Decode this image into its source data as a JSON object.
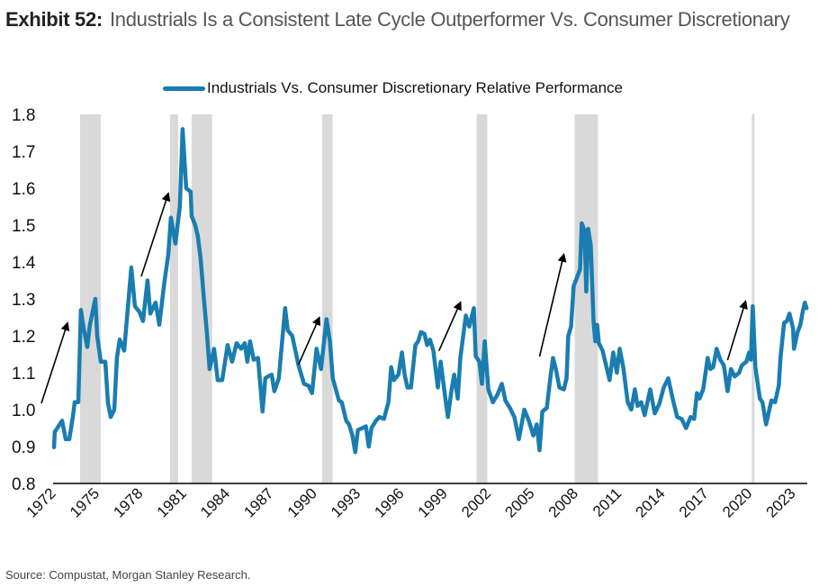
{
  "title": {
    "exhibit": "Exhibit 52:",
    "text": "Industrials Is a Consistent Late Cycle Outperformer Vs. Consumer Discretionary"
  },
  "source": "Source: Compustat, Morgan Stanley Research.",
  "colors": {
    "line": "#1A7DB0",
    "recession": "#D9D9D9",
    "arrow": "#000000",
    "axis": "#000000"
  },
  "chart_data": {
    "type": "line",
    "title": "Industrials Is a Consistent Late Cycle Outperformer Vs. Consumer Discretionary",
    "xlabel": "",
    "ylabel": "",
    "legend": {
      "position": "top-center",
      "entries": [
        "Industrials Vs. Consumer Discretionary Relative Performance"
      ]
    },
    "xlim": [
      1972,
      2024.1
    ],
    "ylim": [
      0.8,
      1.8
    ],
    "grid": false,
    "x_ticks": [
      1972,
      1975,
      1978,
      1981,
      1984,
      1987,
      1990,
      1993,
      1996,
      1999,
      2002,
      2005,
      2008,
      2011,
      2014,
      2017,
      2020,
      2023
    ],
    "y_ticks": [
      0.8,
      0.9,
      1.0,
      1.1,
      1.2,
      1.3,
      1.4,
      1.5,
      1.6,
      1.7,
      1.8
    ],
    "y_tick_labels": [
      "0.8",
      "0.9",
      "1.0",
      "1.1",
      "1.2",
      "1.3",
      "1.4",
      "1.5",
      "1.6",
      "1.7",
      "1.8"
    ],
    "recessions": [
      [
        1973.86,
        1975.29
      ],
      [
        1980.06,
        1980.62
      ],
      [
        1981.55,
        1982.97
      ],
      [
        1990.54,
        1991.28
      ],
      [
        2001.2,
        2001.94
      ],
      [
        2007.96,
        2009.57
      ],
      [
        2020.17,
        2020.36
      ]
    ],
    "annotations": {
      "type": "arrows",
      "arrows": [
        {
          "from": [
            1971.19,
            1.017
          ],
          "to": [
            1972.99,
            1.234
          ]
        },
        {
          "from": [
            1978.08,
            1.361
          ],
          "to": [
            1979.94,
            1.585
          ]
        },
        {
          "from": [
            1988.92,
            1.122
          ],
          "to": [
            1990.35,
            1.249
          ]
        },
        {
          "from": [
            1998.6,
            1.159
          ],
          "to": [
            2000.08,
            1.29
          ]
        },
        {
          "from": [
            2005.54,
            1.144
          ],
          "to": [
            2007.21,
            1.42
          ]
        },
        {
          "from": [
            2018.5,
            1.134
          ],
          "to": [
            2019.74,
            1.293
          ]
        }
      ]
    },
    "series": [
      {
        "name": "Industrials Vs. Consumer Discretionary Relative Performance",
        "x": [
          1972.06,
          1972.12,
          1972.37,
          1972.62,
          1972.87,
          1973.12,
          1973.36,
          1973.49,
          1973.74,
          1973.92,
          1974.11,
          1974.36,
          1974.54,
          1974.91,
          1975.04,
          1975.29,
          1975.6,
          1975.78,
          1975.97,
          1976.22,
          1976.4,
          1976.59,
          1976.9,
          1977.39,
          1977.64,
          1977.95,
          1978.2,
          1978.51,
          1978.7,
          1979.07,
          1979.32,
          1979.69,
          1979.94,
          1980.12,
          1980.43,
          1980.74,
          1980.93,
          1981.18,
          1981.49,
          1981.55,
          1981.8,
          1981.98,
          1982.17,
          1982.42,
          1982.6,
          1982.79,
          1983.1,
          1983.35,
          1983.66,
          1984.03,
          1984.34,
          1984.65,
          1984.96,
          1985.21,
          1985.39,
          1985.58,
          1985.83,
          1986.13,
          1986.44,
          1986.63,
          1986.82,
          1987.07,
          1987.25,
          1987.56,
          1988.0,
          1988.18,
          1988.49,
          1988.92,
          1989.3,
          1989.61,
          1989.85,
          1990.16,
          1990.47,
          1990.85,
          1991.09,
          1991.28,
          1991.71,
          1991.9,
          1992.21,
          1992.4,
          1992.64,
          1992.83,
          1993.02,
          1993.33,
          1993.57,
          1993.76,
          1993.95,
          1994.26,
          1994.5,
          1994.81,
          1995.12,
          1995.31,
          1995.5,
          1995.81,
          1996.05,
          1996.24,
          1996.43,
          1996.67,
          1996.98,
          1997.17,
          1997.36,
          1997.6,
          1997.79,
          1997.98,
          1998.22,
          1998.53,
          1998.72,
          1999.03,
          1999.22,
          1999.46,
          1999.65,
          1999.9,
          2000.08,
          2000.46,
          2000.7,
          2001.01,
          2001.14,
          2001.39,
          2001.57,
          2001.76,
          2002.01,
          2002.32,
          2002.63,
          2002.94,
          2003.18,
          2003.49,
          2003.8,
          2004.11,
          2004.49,
          2004.8,
          2005.11,
          2005.35,
          2005.54,
          2005.73,
          2006.04,
          2006.28,
          2006.47,
          2006.66,
          2006.91,
          2007.22,
          2007.4,
          2007.52,
          2007.71,
          2007.89,
          2008.14,
          2008.33,
          2008.45,
          2008.64,
          2008.76,
          2008.89,
          2009.07,
          2009.26,
          2009.38,
          2009.51,
          2009.63,
          2009.88,
          2010.19,
          2010.37,
          2010.62,
          2010.87,
          2011.06,
          2011.31,
          2011.62,
          2011.86,
          2012.11,
          2012.3,
          2012.55,
          2012.79,
          2013.17,
          2013.48,
          2013.79,
          2014.1,
          2014.41,
          2014.72,
          2015.03,
          2015.33,
          2015.64,
          2015.95,
          2016.2,
          2016.39,
          2016.57,
          2016.82,
          2017.13,
          2017.32,
          2017.51,
          2017.75,
          2018.0,
          2018.25,
          2018.5,
          2018.74,
          2018.99,
          2019.3,
          2019.49,
          2019.8,
          2019.99,
          2020.11,
          2020.24,
          2020.42,
          2020.73,
          2020.91,
          2021.16,
          2021.35,
          2021.53,
          2021.78,
          2022.03,
          2022.15,
          2022.4,
          2022.59,
          2022.77,
          2023.02,
          2023.08,
          2023.33,
          2023.52,
          2023.71,
          2023.83,
          2023.95
        ],
        "values": [
          0.898,
          0.94,
          0.955,
          0.97,
          0.92,
          0.92,
          0.98,
          1.02,
          1.02,
          1.27,
          1.22,
          1.17,
          1.23,
          1.3,
          1.2,
          1.13,
          1.13,
          1.02,
          0.98,
          1.0,
          1.14,
          1.19,
          1.16,
          1.385,
          1.28,
          1.265,
          1.24,
          1.35,
          1.26,
          1.29,
          1.23,
          1.35,
          1.42,
          1.52,
          1.45,
          1.55,
          1.76,
          1.6,
          1.59,
          1.525,
          1.5,
          1.47,
          1.41,
          1.29,
          1.21,
          1.11,
          1.165,
          1.08,
          1.08,
          1.175,
          1.13,
          1.18,
          1.165,
          1.18,
          1.13,
          1.185,
          1.135,
          1.14,
          0.995,
          1.085,
          1.09,
          1.095,
          1.05,
          1.085,
          1.275,
          1.215,
          1.2,
          1.12,
          1.07,
          1.065,
          1.045,
          1.165,
          1.11,
          1.245,
          1.185,
          1.085,
          1.025,
          1.02,
          0.97,
          0.96,
          0.93,
          0.885,
          0.945,
          0.95,
          0.955,
          0.9,
          0.95,
          0.97,
          0.98,
          0.975,
          1.02,
          1.115,
          1.08,
          1.095,
          1.155,
          1.095,
          1.06,
          1.06,
          1.175,
          1.185,
          1.21,
          1.205,
          1.175,
          1.19,
          1.16,
          1.06,
          1.13,
          1.035,
          0.98,
          1.05,
          1.095,
          1.03,
          1.14,
          1.255,
          1.225,
          1.275,
          1.145,
          1.13,
          1.07,
          1.185,
          1.055,
          1.02,
          1.04,
          1.07,
          1.025,
          1.005,
          0.98,
          0.92,
          1.0,
          0.97,
          0.93,
          0.96,
          0.89,
          0.995,
          1.005,
          1.085,
          1.14,
          1.11,
          1.06,
          1.055,
          1.085,
          1.2,
          1.225,
          1.335,
          1.36,
          1.38,
          1.505,
          1.485,
          1.32,
          1.49,
          1.445,
          1.24,
          1.185,
          1.23,
          1.18,
          1.16,
          1.11,
          1.08,
          1.155,
          1.1,
          1.165,
          1.115,
          1.02,
          1.0,
          1.055,
          1.01,
          1.02,
          0.985,
          1.055,
          0.99,
          1.015,
          1.06,
          1.085,
          1.03,
          0.98,
          0.975,
          0.95,
          0.98,
          0.975,
          1.045,
          1.03,
          1.055,
          1.14,
          1.11,
          1.115,
          1.165,
          1.135,
          1.12,
          1.05,
          1.11,
          1.09,
          1.1,
          1.12,
          1.13,
          1.155,
          1.135,
          1.28,
          1.115,
          1.03,
          1.02,
          0.96,
          0.995,
          1.025,
          1.02,
          1.065,
          1.14,
          1.235,
          1.24,
          1.26,
          1.22,
          1.165,
          1.21,
          1.23,
          1.27,
          1.29,
          1.275
        ]
      }
    ]
  }
}
